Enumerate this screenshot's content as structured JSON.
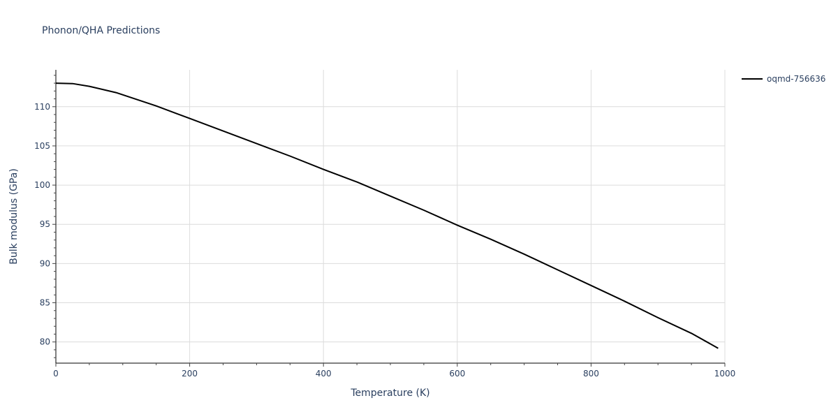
{
  "chart_data": {
    "type": "line",
    "title": "Phonon/QHA Predictions",
    "xlabel": "Temperature (K)",
    "ylabel": "Bulk modulus (GPa)",
    "xlim": [
      0,
      1000
    ],
    "ylim": [
      77.3,
      114.7
    ],
    "xticks": [
      0,
      200,
      400,
      600,
      800,
      1000
    ],
    "yticks": [
      80,
      85,
      90,
      95,
      100,
      105,
      110
    ],
    "grid": true,
    "legend_position": "top-right-outside",
    "series": [
      {
        "name": "oqmd-756636",
        "color": "#000000",
        "x": [
          0,
          25,
          50,
          90,
          150,
          200,
          250,
          300,
          350,
          400,
          450,
          500,
          550,
          600,
          650,
          700,
          750,
          800,
          850,
          900,
          950,
          990
        ],
        "y": [
          113.0,
          112.95,
          112.6,
          111.8,
          110.1,
          108.5,
          106.9,
          105.3,
          103.7,
          102.0,
          100.4,
          98.6,
          96.8,
          94.9,
          93.1,
          91.2,
          89.2,
          87.2,
          85.2,
          83.1,
          81.1,
          79.2
        ]
      }
    ]
  }
}
